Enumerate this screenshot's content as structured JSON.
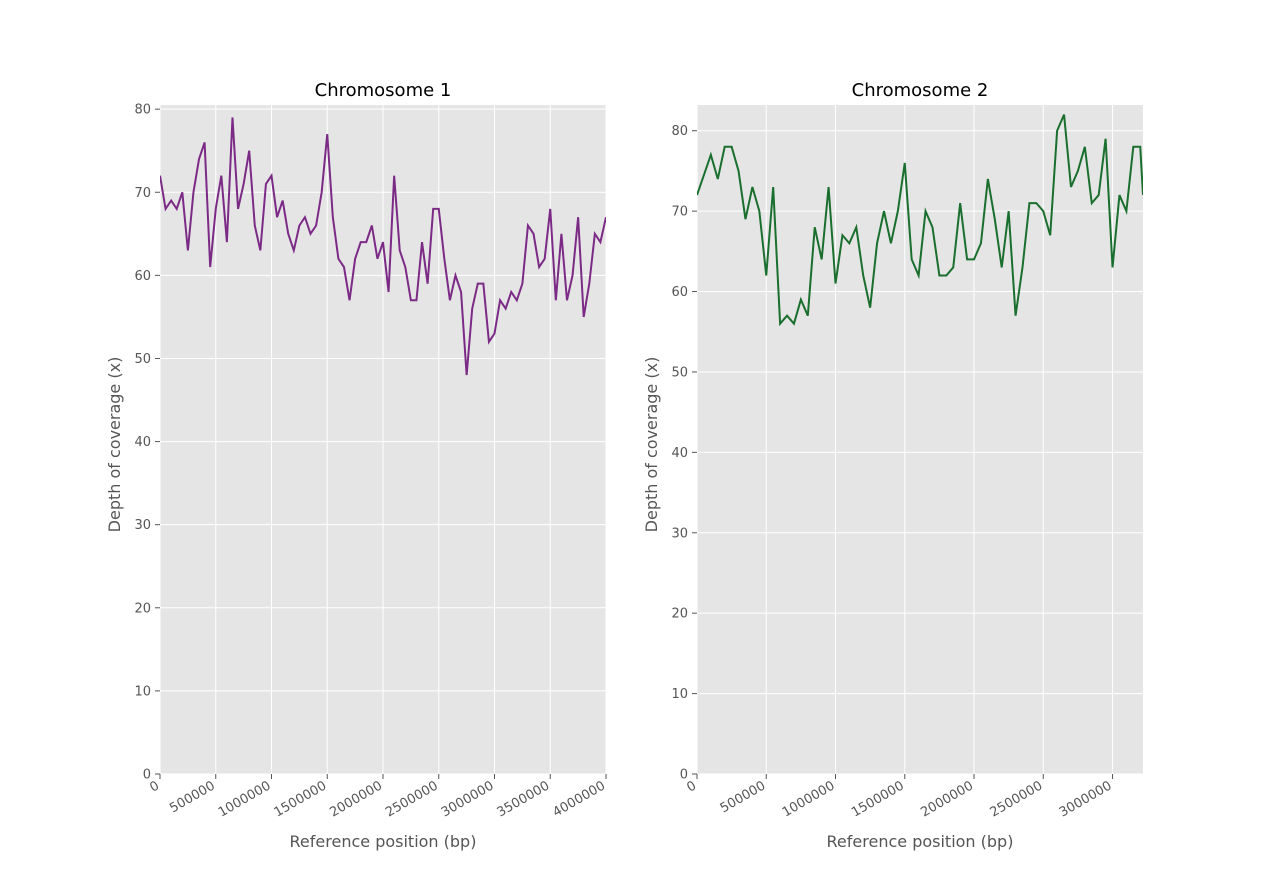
{
  "chart_data": [
    {
      "type": "line",
      "title": "Chromosome 1",
      "xlabel": "Reference position (bp)",
      "ylabel": "Depth of coverage (x)",
      "xlim": [
        0,
        4000000
      ],
      "ylim": [
        0,
        80.5
      ],
      "xticks": [
        0,
        500000,
        1000000,
        1500000,
        2000000,
        2500000,
        3000000,
        3500000,
        4000000
      ],
      "xtick_labels": [
        "0",
        "500000",
        "1000000",
        "1500000",
        "2000000",
        "2500000",
        "3000000",
        "3500000",
        "4000000"
      ],
      "yticks": [
        0,
        10,
        20,
        30,
        40,
        50,
        60,
        70,
        80
      ],
      "ytick_labels": [
        "0",
        "10",
        "20",
        "30",
        "40",
        "50",
        "60",
        "70",
        "80"
      ],
      "grid": true,
      "series": [
        {
          "color": "#7b2a86",
          "x": [
            0,
            50000,
            100000,
            150000,
            200000,
            250000,
            300000,
            350000,
            400000,
            450000,
            500000,
            550000,
            600000,
            650000,
            700000,
            750000,
            800000,
            850000,
            900000,
            950000,
            1000000,
            1050000,
            1100000,
            1150000,
            1200000,
            1250000,
            1300000,
            1350000,
            1400000,
            1450000,
            1500000,
            1550000,
            1600000,
            1650000,
            1700000,
            1750000,
            1800000,
            1850000,
            1900000,
            1950000,
            2000000,
            2050000,
            2100000,
            2150000,
            2200000,
            2250000,
            2300000,
            2350000,
            2400000,
            2450000,
            2500000,
            2550000,
            2600000,
            2650000,
            2700000,
            2750000,
            2800000,
            2850000,
            2900000,
            2950000,
            3000000,
            3050000,
            3100000,
            3150000,
            3200000,
            3250000,
            3300000,
            3350000,
            3400000,
            3450000,
            3500000,
            3550000,
            3600000,
            3650000,
            3700000,
            3750000,
            3800000,
            3850000,
            3900000,
            3950000,
            4000000
          ],
          "y": [
            72,
            68,
            69,
            68,
            70,
            63,
            70,
            74,
            76,
            61,
            68,
            72,
            64,
            79,
            68,
            71,
            75,
            66,
            63,
            71,
            72,
            67,
            69,
            65,
            63,
            66,
            67,
            65,
            66,
            70,
            77,
            67,
            62,
            61,
            57,
            62,
            64,
            64,
            66,
            62,
            64,
            58,
            72,
            63,
            61,
            57,
            57,
            64,
            59,
            68,
            68,
            62,
            57,
            60,
            58,
            48,
            56,
            59,
            59,
            52,
            53,
            57,
            56,
            58,
            57,
            59,
            66,
            65,
            61,
            62,
            68,
            57,
            65,
            57,
            60,
            67,
            55,
            59,
            65,
            64,
            67
          ]
        }
      ]
    },
    {
      "type": "line",
      "title": "Chromosome 2",
      "xlabel": "Reference position (bp)",
      "ylabel": "Depth of coverage (x)",
      "xlim": [
        0,
        3220000
      ],
      "ylim": [
        0,
        83.2
      ],
      "xticks": [
        0,
        500000,
        1000000,
        1500000,
        2000000,
        2500000,
        3000000
      ],
      "xtick_labels": [
        "0",
        "500000",
        "1000000",
        "1500000",
        "2000000",
        "2500000",
        "3000000"
      ],
      "yticks": [
        0,
        10,
        20,
        30,
        40,
        50,
        60,
        70,
        80
      ],
      "ytick_labels": [
        "0",
        "10",
        "20",
        "30",
        "40",
        "50",
        "60",
        "70",
        "80"
      ],
      "grid": true,
      "series": [
        {
          "color": "#1a6e2e",
          "x": [
            0,
            50000,
            100000,
            150000,
            200000,
            250000,
            300000,
            350000,
            400000,
            450000,
            500000,
            550000,
            600000,
            650000,
            700000,
            750000,
            800000,
            850000,
            900000,
            950000,
            1000000,
            1050000,
            1100000,
            1150000,
            1200000,
            1250000,
            1300000,
            1350000,
            1400000,
            1450000,
            1500000,
            1550000,
            1600000,
            1650000,
            1700000,
            1750000,
            1800000,
            1850000,
            1900000,
            1950000,
            2000000,
            2050000,
            2100000,
            2150000,
            2200000,
            2250000,
            2300000,
            2350000,
            2400000,
            2450000,
            2500000,
            2550000,
            2600000,
            2650000,
            2700000,
            2750000,
            2800000,
            2850000,
            2900000,
            2950000,
            3000000,
            3050000,
            3100000,
            3150000,
            3200000,
            3220000
          ],
          "y": [
            72,
            74.5,
            77,
            74,
            78,
            78,
            75,
            69,
            73,
            70,
            62,
            73,
            56,
            57,
            56,
            59,
            57,
            68,
            64,
            73,
            61,
            67,
            66,
            68,
            62,
            58,
            66,
            70,
            66,
            70,
            76,
            64,
            62,
            70,
            68,
            62,
            62,
            63,
            71,
            64,
            64,
            66,
            74,
            69,
            63,
            70,
            57,
            63,
            71,
            71,
            70,
            67,
            80,
            82,
            73,
            75,
            78,
            71,
            72,
            79,
            63,
            72,
            70,
            78,
            78,
            72
          ]
        }
      ]
    }
  ]
}
